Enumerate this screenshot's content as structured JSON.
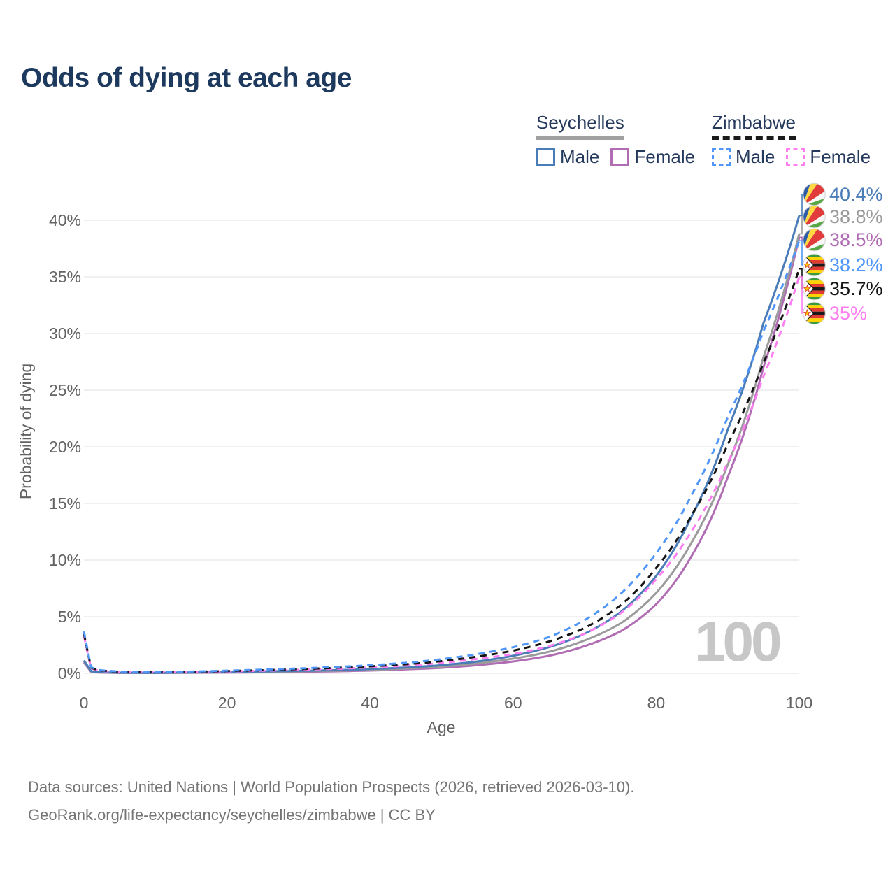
{
  "title": "Odds of dying at each age",
  "legend": {
    "groups": [
      {
        "name": "Seychelles",
        "line_style": "solid",
        "line_color": "#a0a0a0",
        "items": [
          {
            "label": "Male",
            "color": "#4a7cb8",
            "dashed": false
          },
          {
            "label": "Female",
            "color": "#b06db4",
            "dashed": false
          }
        ]
      },
      {
        "name": "Zimbabwe",
        "line_style": "dashed",
        "line_color": "#1a1a1a",
        "items": [
          {
            "label": "Male",
            "color": "#4f96f8",
            "dashed": true
          },
          {
            "label": "Female",
            "color": "#fc7ef0",
            "dashed": true
          }
        ]
      }
    ]
  },
  "watermark_age": "100",
  "footer": {
    "line1": "Data sources: United Nations | World Population Prospects (2026, retrieved 2026-03-10).",
    "line2": "GeoRank.org/life-expectancy/seychelles/zimbabwe | CC BY"
  },
  "colors": {
    "title": "#1d3a5e",
    "axis_text": "#636363",
    "gridline": "#e7e7e7",
    "watermark": "#c7c7c7",
    "footer": "#757575",
    "seychelles_male": "#4a7cb8",
    "seychelles_both": "#9b9b9b",
    "seychelles_female": "#b06db4",
    "zimbabwe_male": "#4f96f8",
    "zimbabwe_both": "#141414",
    "zimbabwe_female": "#fc7ef0"
  },
  "chart_data": {
    "type": "line",
    "title": "Odds of dying at each age",
    "xlabel": "Age",
    "ylabel": "Probability of dying",
    "xlim": [
      0,
      100
    ],
    "ylim": [
      0,
      42
    ],
    "grid": true,
    "legend_position": "top-right",
    "x_tick_values": [
      0,
      20,
      40,
      60,
      80,
      100
    ],
    "x_tick_labels": [
      "0",
      "20",
      "40",
      "60",
      "80",
      "100"
    ],
    "y_tick_values": [
      0,
      5,
      10,
      15,
      20,
      25,
      30,
      35,
      40
    ],
    "y_tick_labels": [
      "0%",
      "5%",
      "10%",
      "15%",
      "20%",
      "25%",
      "30%",
      "35%",
      "40%"
    ],
    "x": [
      0,
      1,
      2,
      5,
      10,
      15,
      20,
      25,
      30,
      35,
      40,
      45,
      50,
      55,
      60,
      65,
      70,
      75,
      80,
      85,
      90,
      95,
      100
    ],
    "series": [
      {
        "name": "Seychelles Female",
        "country": "Seychelles",
        "sex": "Female",
        "flag": "seychelles",
        "color": "#b06db4",
        "dashed": false,
        "end_label": "38.5%",
        "end_value": 38.5,
        "values": [
          0.95,
          0.14,
          0.08,
          0.04,
          0.03,
          0.05,
          0.07,
          0.1,
          0.13,
          0.18,
          0.25,
          0.35,
          0.49,
          0.72,
          1.05,
          1.55,
          2.4,
          3.7,
          6.1,
          10.4,
          17.3,
          27.0,
          38.5
        ]
      },
      {
        "name": "Seychelles Both sexes",
        "country": "Seychelles",
        "sex": "Both",
        "flag": "seychelles",
        "color": "#9b9b9b",
        "dashed": false,
        "end_label": "38.8%",
        "end_value": 38.8,
        "values": [
          1.05,
          0.17,
          0.09,
          0.05,
          0.04,
          0.06,
          0.1,
          0.13,
          0.18,
          0.23,
          0.31,
          0.43,
          0.6,
          0.88,
          1.3,
          1.9,
          2.9,
          4.4,
          7.1,
          11.6,
          18.4,
          27.9,
          38.8
        ]
      },
      {
        "name": "Seychelles Male",
        "country": "Seychelles",
        "sex": "Male",
        "flag": "seychelles",
        "color": "#4a7cb8",
        "dashed": false,
        "end_label": "40.4%",
        "end_value": 40.4,
        "values": [
          1.15,
          0.2,
          0.1,
          0.06,
          0.05,
          0.08,
          0.13,
          0.17,
          0.22,
          0.28,
          0.38,
          0.52,
          0.72,
          1.05,
          1.55,
          2.3,
          3.5,
          5.4,
          8.6,
          13.9,
          21.5,
          30.9,
          40.4
        ]
      },
      {
        "name": "Zimbabwe Female",
        "country": "Zimbabwe",
        "sex": "Female",
        "flag": "zimbabwe",
        "color": "#fc7ef0",
        "dashed": true,
        "end_label": "35%",
        "end_value": 35.0,
        "values": [
          3.3,
          0.45,
          0.24,
          0.12,
          0.1,
          0.12,
          0.17,
          0.23,
          0.31,
          0.4,
          0.52,
          0.68,
          0.92,
          1.28,
          1.7,
          2.4,
          3.5,
          5.3,
          8.3,
          12.6,
          18.6,
          26.2,
          35.0
        ]
      },
      {
        "name": "Zimbabwe Both sexes",
        "country": "Zimbabwe",
        "sex": "Both",
        "flag": "zimbabwe",
        "color": "#141414",
        "dashed": true,
        "end_label": "35.7%",
        "end_value": 35.7,
        "values": [
          3.5,
          0.5,
          0.27,
          0.14,
          0.11,
          0.14,
          0.2,
          0.28,
          0.37,
          0.48,
          0.62,
          0.8,
          1.08,
          1.48,
          2.0,
          2.8,
          4.0,
          6.0,
          9.3,
          14.0,
          20.2,
          27.4,
          35.7
        ]
      },
      {
        "name": "Zimbabwe Male",
        "country": "Zimbabwe",
        "sex": "Male",
        "flag": "zimbabwe",
        "color": "#4f96f8",
        "dashed": true,
        "end_label": "38.2%",
        "end_value": 38.2,
        "values": [
          3.7,
          0.55,
          0.3,
          0.16,
          0.13,
          0.16,
          0.24,
          0.33,
          0.43,
          0.56,
          0.72,
          0.93,
          1.25,
          1.7,
          2.3,
          3.2,
          4.7,
          7.0,
          10.6,
          15.8,
          22.6,
          30.2,
          38.2
        ]
      }
    ]
  }
}
